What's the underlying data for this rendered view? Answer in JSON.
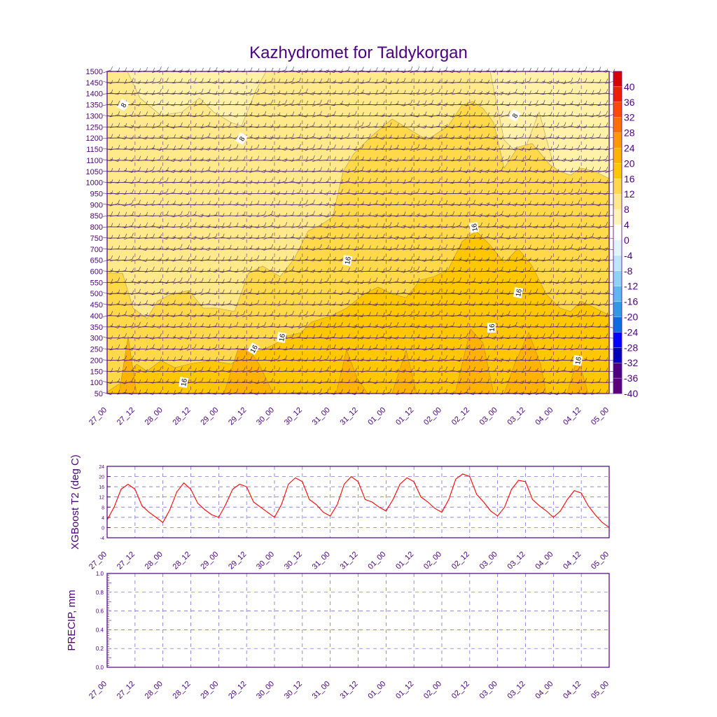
{
  "title": "Kazhydromet for Taldykorgan",
  "colors": {
    "axis": "#4b0082",
    "t2_line": "#ff0000",
    "grid": "#6a5acd"
  },
  "time_ticks": [
    "27_00",
    "27_12",
    "28_00",
    "28_12",
    "29_00",
    "29_12",
    "30_00",
    "30_12",
    "31_00",
    "31_12",
    "01_00",
    "01_12",
    "02_00",
    "02_12",
    "03_00",
    "03_12",
    "04_00",
    "04_12",
    "05_00"
  ],
  "colorbar": {
    "labels": [
      "40",
      "36",
      "32",
      "28",
      "24",
      "20",
      "16",
      "12",
      "8",
      "4",
      "0",
      "-4",
      "-8",
      "-12",
      "-16",
      "-20",
      "-24",
      "-28",
      "-32",
      "-36",
      "-40"
    ],
    "colors": [
      "#d80000",
      "#ee2000",
      "#ff4a00",
      "#ff7000",
      "#ff9800",
      "#ffb300",
      "#ffc700",
      "#ffd94a",
      "#ffe98a",
      "#fff4b8",
      "#ffffff",
      "#e4f4fc",
      "#bde6f8",
      "#8dd2f4",
      "#5cb8ee",
      "#2f9be6",
      "#0a6ee0",
      "#0000ff",
      "#0000b8",
      "#4b0082",
      "#5a007a"
    ]
  },
  "chart_data": [
    {
      "type": "heatmap",
      "title": "Kazhydromet for Taldykorgan",
      "xlabel": "",
      "ylabel": "",
      "x_ticks": [
        "27_00",
        "27_12",
        "28_00",
        "28_12",
        "29_00",
        "29_12",
        "30_00",
        "30_12",
        "31_00",
        "31_12",
        "01_00",
        "01_12",
        "02_00",
        "02_12",
        "03_00",
        "03_12",
        "04_00",
        "04_12",
        "05_00"
      ],
      "y_levels": [
        1500,
        1450,
        1400,
        1350,
        1300,
        1250,
        1200,
        1150,
        1100,
        1050,
        1000,
        950,
        900,
        850,
        800,
        750,
        700,
        650,
        600,
        550,
        500,
        450,
        400,
        350,
        300,
        250,
        200,
        150,
        100,
        50
      ],
      "contour_labels": [
        "8",
        "8",
        "8",
        "16",
        "16",
        "16",
        "16",
        "16",
        "16",
        "16",
        "16"
      ],
      "overlay": "wind barbs",
      "ylim": [
        50,
        1500
      ]
    },
    {
      "type": "line",
      "ylabel": "XGBoost T2 (deg C)",
      "xlabel": "",
      "x_ticks": [
        "27_00",
        "27_12",
        "28_00",
        "28_12",
        "29_00",
        "29_12",
        "30_00",
        "30_12",
        "31_00",
        "31_12",
        "01_00",
        "01_12",
        "02_00",
        "02_12",
        "03_00",
        "03_12",
        "04_00",
        "04_12",
        "05_00"
      ],
      "y_ticks": [
        "-4",
        "0",
        "4",
        "8",
        "12",
        "16",
        "20",
        "24"
      ],
      "ylim": [
        -4,
        24
      ],
      "x_step_hours": 3,
      "values": [
        3,
        8,
        15,
        17,
        15,
        8.5,
        6,
        4,
        2,
        7,
        14,
        17.5,
        15,
        9.5,
        7,
        5,
        4,
        9,
        15,
        17,
        16,
        10,
        8,
        6,
        4,
        9,
        17,
        19.5,
        18,
        11,
        9,
        6,
        4.5,
        9,
        17,
        20,
        18,
        11,
        10,
        8,
        6.5,
        11,
        17,
        19.5,
        18,
        12,
        10,
        7.5,
        6,
        11,
        19,
        21,
        20,
        13,
        10,
        6.5,
        4.5,
        8,
        15,
        18.5,
        18,
        11,
        8.5,
        6.5,
        4,
        6.5,
        11,
        14.5,
        13.5,
        8.5,
        5,
        2,
        0
      ]
    },
    {
      "type": "line",
      "ylabel": "PRECIP, mm",
      "xlabel": "",
      "x_ticks": [
        "27_00",
        "27_12",
        "28_00",
        "28_12",
        "29_00",
        "29_12",
        "30_00",
        "30_12",
        "31_00",
        "31_12",
        "01_00",
        "01_12",
        "02_00",
        "02_12",
        "03_00",
        "03_12",
        "04_00",
        "04_12",
        "05_00"
      ],
      "y_ticks": [
        "0.0",
        "0.2",
        "0.4",
        "0.6",
        "0.8",
        "1.0"
      ],
      "ylim": [
        0,
        1
      ],
      "values": []
    }
  ]
}
